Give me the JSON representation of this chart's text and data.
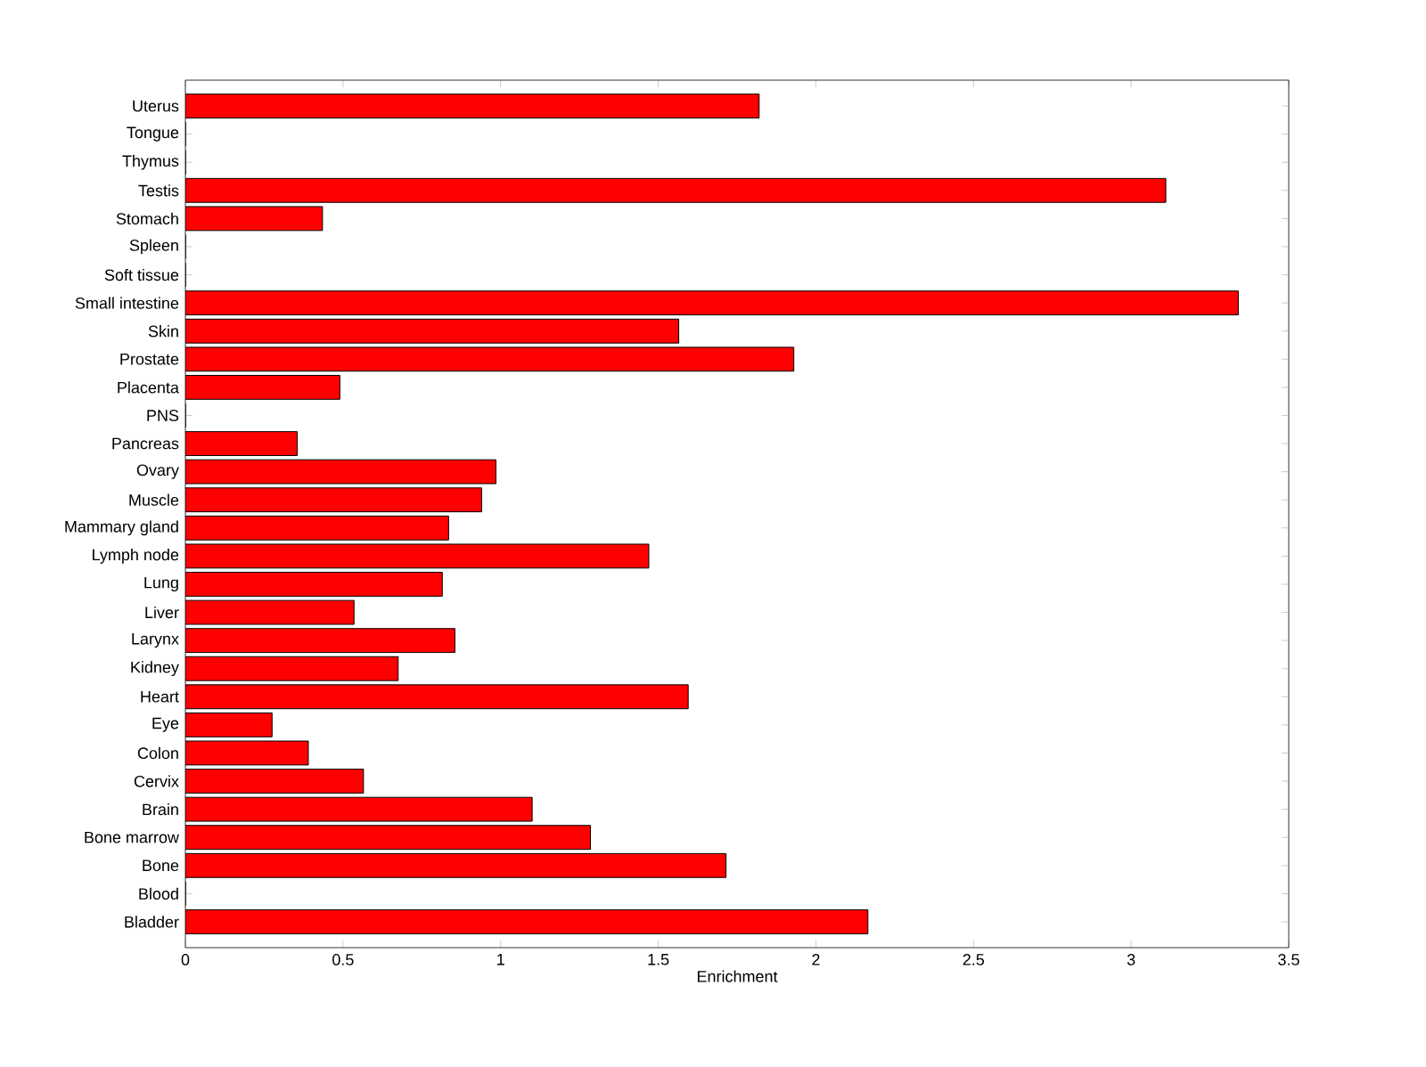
{
  "chart_data": {
    "type": "bar",
    "orientation": "horizontal",
    "xlabel": "Enrichment",
    "categories": [
      "Uterus",
      "Tongue",
      "Thymus",
      "Testis",
      "Stomach",
      "Spleen",
      "Soft tissue",
      "Small intestine",
      "Skin",
      "Prostate",
      "Placenta",
      "PNS",
      "Pancreas",
      "Ovary",
      "Muscle",
      "Mammary gland",
      "Lymph node",
      "Lung",
      "Liver",
      "Larynx",
      "Kidney",
      "Heart",
      "Eye",
      "Colon",
      "Cervix",
      "Brain",
      "Bone marrow",
      "Bone",
      "Blood",
      "Bladder"
    ],
    "values": [
      1.82,
      0,
      0,
      3.11,
      0.435,
      0,
      0,
      3.34,
      1.565,
      1.93,
      0.49,
      0,
      0.355,
      0.985,
      0.94,
      0.835,
      1.47,
      0.815,
      0.535,
      0.855,
      0.675,
      1.595,
      0.275,
      0.39,
      0.565,
      1.1,
      1.285,
      1.715,
      0,
      2.165
    ],
    "color": "#ff0000",
    "xlim": [
      0,
      3.5
    ],
    "xticks": [
      0,
      0.5,
      1,
      1.5,
      2,
      2.5,
      3,
      3.5
    ]
  }
}
